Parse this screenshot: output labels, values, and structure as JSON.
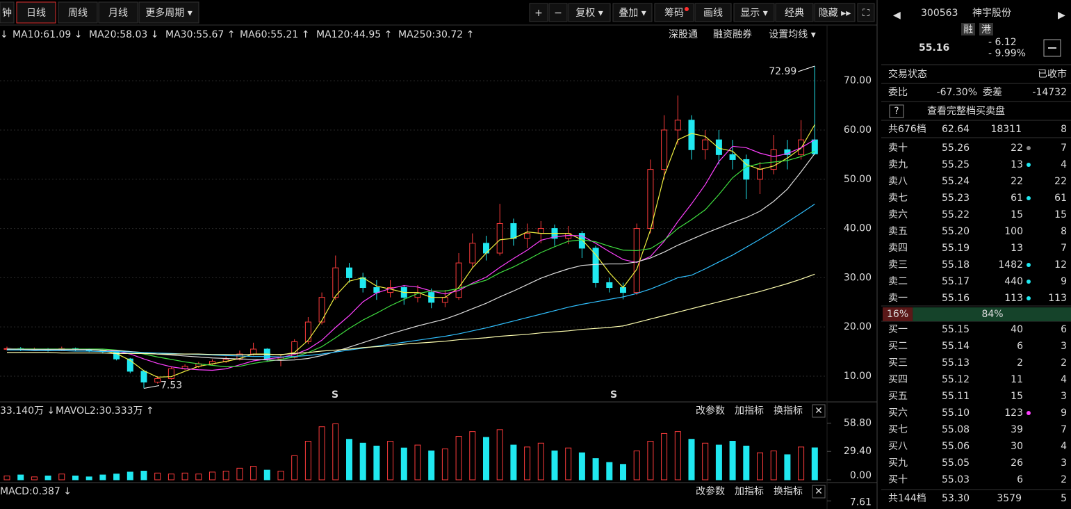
{
  "toolbar": {
    "left": [
      "钟",
      "日线",
      "周线",
      "月线",
      "更多周期 ▾"
    ],
    "right": [
      "+",
      "−",
      "复权 ▾",
      "叠加 ▾",
      "筹码",
      "画线",
      "显示 ▾",
      "经典",
      "隐藏 ▸▸",
      "⛶"
    ]
  },
  "chart_data": [
    {
      "type": "candlestick",
      "lead": "↓",
      "series": [
        {
          "name": "MA10:61.09 ↓",
          "color": "#f0f040",
          "values": [
            15.6,
            15.5,
            15.5,
            15.4,
            15.5,
            15.4,
            15.4,
            15.2,
            14.6,
            13.2,
            11.1,
            9.8,
            9.9,
            11.0,
            12.0,
            12.5,
            13.0,
            13.6,
            14.5,
            14.5,
            14.3,
            14.8,
            17.3,
            21.3,
            26.3,
            29.3,
            30,
            28.3,
            27.7,
            27,
            27,
            26,
            26,
            28,
            32,
            35,
            37.7,
            38,
            39.3,
            39,
            39,
            39,
            37.7,
            34.7,
            31,
            28,
            31.7,
            39.7,
            50.7,
            58,
            59.3,
            58.7,
            56.3,
            55.7,
            53,
            52,
            52.7,
            54.3,
            56.3,
            61.09
          ]
        },
        {
          "name": "MA20:58.03 ↓",
          "color": "#ff40ff",
          "values": [
            15.6,
            15.5,
            15.5,
            15.5,
            15.5,
            15.5,
            15.4,
            15.3,
            15.1,
            14.5,
            13.5,
            12.6,
            11.9,
            11.5,
            11.3,
            11.2,
            11.5,
            12.3,
            13.1,
            13.5,
            13.8,
            14.4,
            15.5,
            17.3,
            19.9,
            22.3,
            25.1,
            26.9,
            27.8,
            28.4,
            28.1,
            27.3,
            26.7,
            27.4,
            28.9,
            30.1,
            32.1,
            33.9,
            35.6,
            37.6,
            38.3,
            38.6,
            38.5,
            37.0,
            35.3,
            33.7,
            33.1,
            34.3,
            37.4,
            41.4,
            45.0,
            48.9,
            53.6,
            56.7,
            56.4,
            55.3,
            54.6,
            55.2,
            56.4,
            58.03
          ]
        },
        {
          "name": "MA30:55.67 ↑",
          "color": "#40e040",
          "values": [
            15.5,
            15.5,
            15.5,
            15.5,
            15.5,
            15.5,
            15.5,
            15.5,
            15.3,
            15.0,
            14.5,
            13.9,
            13.4,
            12.9,
            12.5,
            12.2,
            11.9,
            12.0,
            12.6,
            13.0,
            13.4,
            13.9,
            14.8,
            16.0,
            17.8,
            19.7,
            21.4,
            22.8,
            24.3,
            25.6,
            26.8,
            27.3,
            27.3,
            27.8,
            28.7,
            29.5,
            31.0,
            32.2,
            33.6,
            35.1,
            36.3,
            37.4,
            37.7,
            37.3,
            36.4,
            35.6,
            35.5,
            35.9,
            37.6,
            40.0,
            41.8,
            43.8,
            46.9,
            50.3,
            52.5,
            53.2,
            53.5,
            53.8,
            54.6,
            55.67
          ]
        },
        {
          "name": "MA60:55.21 ↑",
          "color": "#dddddd",
          "values": [
            15.4,
            15.4,
            15.4,
            15.4,
            15.4,
            15.4,
            15.4,
            15.3,
            15.2,
            15.0,
            14.8,
            14.5,
            14.3,
            14.1,
            13.9,
            13.7,
            13.6,
            13.5,
            13.4,
            13.3,
            13.2,
            13.3,
            13.6,
            14.2,
            15.0,
            15.9,
            16.8,
            17.7,
            18.6,
            19.4,
            20.2,
            20.9,
            21.6,
            22.6,
            23.7,
            24.8,
            26.1,
            27.3,
            28.6,
            29.9,
            30.9,
            31.8,
            32.5,
            32.7,
            32.8,
            32.8,
            33.2,
            34.0,
            35.2,
            36.6,
            37.8,
            39.0,
            40.1,
            41.2,
            42.2,
            43.5,
            45.5,
            48.0,
            51.5,
            55.21
          ]
        },
        {
          "name": "MA120:44.95 ↑",
          "color": "#30c0ff",
          "values": [
            15.3,
            15.3,
            15.2,
            15.2,
            15.2,
            15.1,
            15.1,
            15.0,
            15.0,
            14.9,
            14.8,
            14.7,
            14.6,
            14.5,
            14.4,
            14.3,
            14.2,
            14.1,
            14.0,
            14.0,
            13.9,
            14.0,
            14.2,
            14.5,
            14.9,
            15.3,
            15.7,
            16.1,
            16.5,
            16.9,
            17.3,
            17.7,
            18.1,
            18.6,
            19.2,
            19.8,
            20.5,
            21.2,
            21.9,
            22.6,
            23.3,
            24.0,
            24.6,
            25.1,
            25.6,
            26.1,
            26.8,
            27.7,
            28.8,
            30.0,
            30.5,
            31.8,
            33.2,
            34.6,
            36.2,
            37.8,
            39.5,
            41.3,
            43.1,
            44.95
          ]
        },
        {
          "name": "MA250:30.72 ↑",
          "color": "#ffffb0",
          "values": [
            14.8,
            14.8,
            14.8,
            14.8,
            14.7,
            14.7,
            14.7,
            14.7,
            14.6,
            14.6,
            14.6,
            14.5,
            14.5,
            14.5,
            14.5,
            14.4,
            14.4,
            14.4,
            14.4,
            14.4,
            14.4,
            14.6,
            14.8,
            15.1,
            15.3,
            15.5,
            15.8,
            16.0,
            16.2,
            16.5,
            16.7,
            16.9,
            17.1,
            17.4,
            17.6,
            17.8,
            18.1,
            18.3,
            18.5,
            18.8,
            19.0,
            19.2,
            19.5,
            19.7,
            19.9,
            20.2,
            20.9,
            21.6,
            22.3,
            23.0,
            23.7,
            24.4,
            25.1,
            25.8,
            26.5,
            27.2,
            28.0,
            28.8,
            29.7,
            30.72
          ]
        }
      ],
      "links": [
        "深股通",
        "融资融券",
        "设置均线 ▾"
      ],
      "candles": [
        [
          15.5,
          16.0,
          15.2,
          15.6
        ],
        [
          15.6,
          15.9,
          15.1,
          15.4
        ],
        [
          15.4,
          15.8,
          15.2,
          15.5
        ],
        [
          15.5,
          15.7,
          15.0,
          15.3
        ],
        [
          15.3,
          16.0,
          15.1,
          15.6
        ],
        [
          15.6,
          15.8,
          15.1,
          15.4
        ],
        [
          15.4,
          15.6,
          14.9,
          15.2
        ],
        [
          15.2,
          15.4,
          14.6,
          15.0
        ],
        [
          15.0,
          15.1,
          13.2,
          13.5
        ],
        [
          13.5,
          13.7,
          10.6,
          11.0
        ],
        [
          11.0,
          11.3,
          7.53,
          8.8
        ],
        [
          8.8,
          10.0,
          8.5,
          9.5
        ],
        [
          9.5,
          11.9,
          9.3,
          11.5
        ],
        [
          11.5,
          12.4,
          11.2,
          12.0
        ],
        [
          12.0,
          12.9,
          11.7,
          12.5
        ],
        [
          12.5,
          13.4,
          12.2,
          13.0
        ],
        [
          13.0,
          14.0,
          12.7,
          13.4
        ],
        [
          13.4,
          15.2,
          13.2,
          14.5
        ],
        [
          14.5,
          16.8,
          14.2,
          15.5
        ],
        [
          15.5,
          15.7,
          13.0,
          13.5
        ],
        [
          13.5,
          14.4,
          12.0,
          13.8
        ],
        [
          13.8,
          17.5,
          13.6,
          17.0
        ],
        [
          17.0,
          22.0,
          16.5,
          21.0
        ],
        [
          21.0,
          27.0,
          20.5,
          26.0
        ],
        [
          26.0,
          34.5,
          25.5,
          32.0
        ],
        [
          32.0,
          33.0,
          29.0,
          30.0
        ],
        [
          30.0,
          31.0,
          27.0,
          28.0
        ],
        [
          28.0,
          29.5,
          25.5,
          27.0
        ],
        [
          27.0,
          29.5,
          26.0,
          28.0
        ],
        [
          28.0,
          28.5,
          24.5,
          26.0
        ],
        [
          26.0,
          28.5,
          25.0,
          27.0
        ],
        [
          27.0,
          27.8,
          23.8,
          25.0
        ],
        [
          25.0,
          27.5,
          24.0,
          26.0
        ],
        [
          26.0,
          35.0,
          25.5,
          33.0
        ],
        [
          33.0,
          39.0,
          32.0,
          37.0
        ],
        [
          37.0,
          38.5,
          33.5,
          35.0
        ],
        [
          35.0,
          45.0,
          34.5,
          41.0
        ],
        [
          41.0,
          42.0,
          36.5,
          38.0
        ],
        [
          38.0,
          41.0,
          36.0,
          39.0
        ],
        [
          39.0,
          41.5,
          37.0,
          40.0
        ],
        [
          40.0,
          40.8,
          36.5,
          38.0
        ],
        [
          38.0,
          40.5,
          36.8,
          39.0
        ],
        [
          39.0,
          39.5,
          34.0,
          36.0
        ],
        [
          36.0,
          36.5,
          28.0,
          29.0
        ],
        [
          29.0,
          30.0,
          27.0,
          28.0
        ],
        [
          28.0,
          29.0,
          25.6,
          27.0
        ],
        [
          27.0,
          41.0,
          26.5,
          40.0
        ],
        [
          40.0,
          54.0,
          39.0,
          52.0
        ],
        [
          52.0,
          63.0,
          50.0,
          60.0
        ],
        [
          60.0,
          67.0,
          57.0,
          62.0
        ],
        [
          62.0,
          63.0,
          54.0,
          56.0
        ],
        [
          56.0,
          60.0,
          54.0,
          58.0
        ],
        [
          58.0,
          60.0,
          53.0,
          55.0
        ],
        [
          55.0,
          58.0,
          52.0,
          54.0
        ],
        [
          54.0,
          55.0,
          46.0,
          50.0
        ],
        [
          50.0,
          53.5,
          47.0,
          52.0
        ],
        [
          52.0,
          59.0,
          51.0,
          56.0
        ],
        [
          56.0,
          58.0,
          52.0,
          55.0
        ],
        [
          55.0,
          62.0,
          54.0,
          58.0
        ],
        [
          58.0,
          72.99,
          55.0,
          55.16
        ]
      ],
      "up_color": "#ff3c3c",
      "down_color": "#20e8f0",
      "ylim": [
        4.77,
        77.65
      ],
      "yticks": [
        {
          "value": 10,
          "label": "10.00"
        },
        {
          "value": 20,
          "label": "20.00"
        },
        {
          "value": 30,
          "label": "30.00"
        },
        {
          "value": 40,
          "label": "40.00"
        },
        {
          "value": 50,
          "label": "50.00"
        },
        {
          "value": 60,
          "label": "60.00"
        },
        {
          "value": 70,
          "label": "70.00"
        }
      ],
      "grid": true,
      "annotations": [
        "72.99",
        "7.53"
      ],
      "signals": [
        "S",
        "S"
      ]
    },
    {
      "type": "bar",
      "legend": [
        "33.140万 ↓",
        "MAVOL2:30.333万 ↑"
      ],
      "values": [
        4,
        5,
        3,
        4,
        6,
        4,
        3,
        5,
        6,
        8,
        9,
        7,
        6,
        7,
        6,
        8,
        9,
        12,
        14,
        10,
        9,
        25,
        40,
        55,
        58,
        42,
        38,
        35,
        40,
        33,
        36,
        30,
        32,
        45,
        50,
        44,
        52,
        36,
        34,
        38,
        30,
        33,
        28,
        22,
        18,
        16,
        30,
        40,
        48,
        50,
        42,
        38,
        36,
        40,
        35,
        28,
        30,
        26,
        34,
        33.14
      ],
      "ylim": [
        0,
        62
      ],
      "yticks": [
        {
          "value": 0,
          "label": "0.00"
        },
        {
          "value": 29.4,
          "label": "29.40"
        },
        {
          "value": 58.8,
          "label": "58.80"
        }
      ],
      "buttons": [
        "改参数",
        "加指标",
        "换指标",
        "✕"
      ]
    },
    {
      "type": "line",
      "title": "MACD:0.387 ↓",
      "ylim": [
        -8,
        8
      ],
      "yticks": [
        7.61
      ],
      "buttons": [
        "改参数",
        "加指标",
        "换指标",
        "✕"
      ]
    }
  ],
  "quote": {
    "code": "300563",
    "name": "神宇股份",
    "badges": [
      "融",
      "港"
    ],
    "price": "55.16",
    "change": "- 6.12",
    "change_pct": "- 9.99%",
    "status": [
      "交易状态",
      "已收市"
    ],
    "ratio_row": [
      "委比",
      "-67.30%",
      "委差",
      "-14732"
    ],
    "help": "?",
    "full_book": "查看完整档买卖盘",
    "ask_total": [
      "共676档",
      "62.64",
      "18311",
      "8"
    ],
    "asks": [
      {
        "label": "卖十",
        "price": "55.26",
        "volume": "22",
        "count": "7",
        "dot": "#888888"
      },
      {
        "label": "卖九",
        "price": "55.25",
        "volume": "13",
        "count": "4",
        "dot": "#20e8f0"
      },
      {
        "label": "卖八",
        "price": "55.24",
        "volume": "22",
        "count": "22"
      },
      {
        "label": "卖七",
        "price": "55.23",
        "volume": "61",
        "count": "61",
        "dot": "#20e8f0"
      },
      {
        "label": "卖六",
        "price": "55.22",
        "volume": "15",
        "count": "15"
      },
      {
        "label": "卖五",
        "price": "55.20",
        "volume": "100",
        "count": "8"
      },
      {
        "label": "卖四",
        "price": "55.19",
        "volume": "13",
        "count": "7"
      },
      {
        "label": "卖三",
        "price": "55.18",
        "volume": "1482",
        "count": "12",
        "dot": "#20e8f0"
      },
      {
        "label": "卖二",
        "price": "55.17",
        "volume": "440",
        "count": "9",
        "dot": "#20e8f0"
      },
      {
        "label": "卖一",
        "price": "55.16",
        "volume": "113",
        "count": "113",
        "dot": "#20e8f0"
      }
    ],
    "split": [
      {
        "value": 16,
        "label": "16%"
      },
      {
        "value": 84,
        "label": "84%"
      }
    ],
    "bids": [
      {
        "label": "买一",
        "price": "55.15",
        "volume": "40",
        "count": "6"
      },
      {
        "label": "买二",
        "price": "55.14",
        "volume": "6",
        "count": "3"
      },
      {
        "label": "买三",
        "price": "55.13",
        "volume": "2",
        "count": "2"
      },
      {
        "label": "买四",
        "price": "55.12",
        "volume": "11",
        "count": "4"
      },
      {
        "label": "买五",
        "price": "55.11",
        "volume": "15",
        "count": "3"
      },
      {
        "label": "买六",
        "price": "55.10",
        "volume": "123",
        "count": "9",
        "dot": "#ff40ff"
      },
      {
        "label": "买七",
        "price": "55.08",
        "volume": "39",
        "count": "7"
      },
      {
        "label": "买八",
        "price": "55.06",
        "volume": "30",
        "count": "4"
      },
      {
        "label": "买九",
        "price": "55.05",
        "volume": "26",
        "count": "3"
      },
      {
        "label": "买十",
        "price": "55.03",
        "volume": "6",
        "count": "2"
      }
    ],
    "bid_total": [
      "共144档",
      "53.30",
      "3579",
      "5"
    ]
  }
}
